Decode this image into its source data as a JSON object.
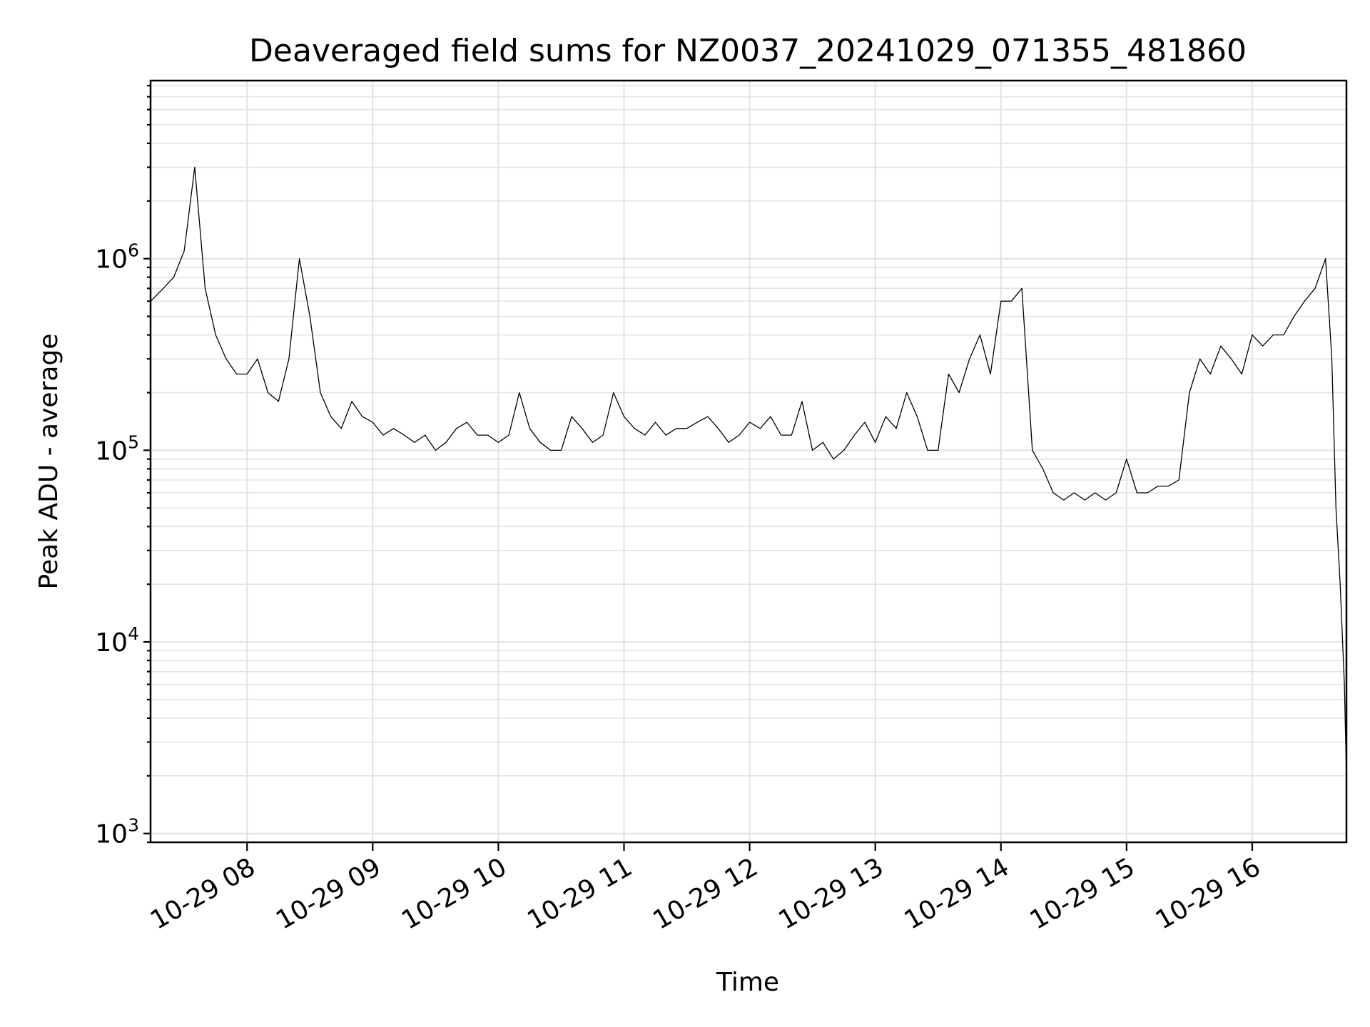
{
  "chart_data": {
    "type": "line",
    "title": "Deaveraged field sums for NZ0037_20241029_071355_481860",
    "xlabel": "Time",
    "ylabel": "Peak ADU - average",
    "yscale": "log",
    "grid": true,
    "x_range": [
      "2024-10-29 07:13:55",
      "2024-10-29 16:45:00"
    ],
    "ylim": [
      900,
      8500000
    ],
    "xticks": [
      "10-29 08",
      "10-29 09",
      "10-29 10",
      "10-29 11",
      "10-29 12",
      "10-29 13",
      "10-29 14",
      "10-29 15",
      "10-29 16"
    ],
    "yticks": [
      {
        "base": "10",
        "exp": "3"
      },
      {
        "base": "10",
        "exp": "4"
      },
      {
        "base": "10",
        "exp": "5"
      },
      {
        "base": "10",
        "exp": "6"
      }
    ],
    "series": [
      {
        "color": "#000000",
        "x": [
          "07:14",
          "07:20",
          "07:25",
          "07:30",
          "07:35",
          "07:40",
          "07:45",
          "07:50",
          "07:55",
          "08:00",
          "08:05",
          "08:10",
          "08:15",
          "08:20",
          "08:25",
          "08:30",
          "08:35",
          "08:40",
          "08:45",
          "08:50",
          "08:55",
          "09:00",
          "09:05",
          "09:10",
          "09:15",
          "09:20",
          "09:25",
          "09:30",
          "09:35",
          "09:40",
          "09:45",
          "09:50",
          "09:55",
          "10:00",
          "10:05",
          "10:10",
          "10:15",
          "10:20",
          "10:25",
          "10:30",
          "10:35",
          "10:40",
          "10:45",
          "10:50",
          "10:55",
          "11:00",
          "11:05",
          "11:10",
          "11:15",
          "11:20",
          "11:25",
          "11:30",
          "11:35",
          "11:40",
          "11:45",
          "11:50",
          "11:55",
          "12:00",
          "12:05",
          "12:10",
          "12:15",
          "12:20",
          "12:25",
          "12:30",
          "12:35",
          "12:40",
          "12:45",
          "12:50",
          "12:55",
          "13:00",
          "13:05",
          "13:10",
          "13:15",
          "13:20",
          "13:25",
          "13:30",
          "13:35",
          "13:40",
          "13:45",
          "13:50",
          "13:55",
          "14:00",
          "14:05",
          "14:10",
          "14:15",
          "14:20",
          "14:25",
          "14:30",
          "14:35",
          "14:40",
          "14:45",
          "14:50",
          "14:55",
          "15:00",
          "15:05",
          "15:10",
          "15:15",
          "15:20",
          "15:25",
          "15:30",
          "15:35",
          "15:40",
          "15:45",
          "15:50",
          "15:55",
          "16:00",
          "16:05",
          "16:10",
          "16:15",
          "16:20",
          "16:25",
          "16:30",
          "16:35",
          "16:38",
          "16:40",
          "16:42",
          "16:44",
          "16:45"
        ],
        "y": [
          600000,
          700000,
          800000,
          1100000,
          3000000,
          700000,
          400000,
          300000,
          250000,
          250000,
          300000,
          200000,
          180000,
          300000,
          1000000,
          500000,
          200000,
          150000,
          130000,
          180000,
          150000,
          140000,
          120000,
          130000,
          120000,
          110000,
          120000,
          100000,
          110000,
          130000,
          140000,
          120000,
          120000,
          110000,
          120000,
          200000,
          130000,
          110000,
          100000,
          100000,
          150000,
          130000,
          110000,
          120000,
          200000,
          150000,
          130000,
          120000,
          140000,
          120000,
          130000,
          130000,
          140000,
          150000,
          130000,
          110000,
          120000,
          140000,
          130000,
          150000,
          120000,
          120000,
          180000,
          100000,
          110000,
          90000,
          100000,
          120000,
          140000,
          110000,
          150000,
          130000,
          200000,
          150000,
          100000,
          100000,
          250000,
          200000,
          300000,
          400000,
          250000,
          600000,
          600000,
          700000,
          100000,
          80000,
          60000,
          55000,
          60000,
          55000,
          60000,
          55000,
          60000,
          90000,
          60000,
          60000,
          65000,
          65000,
          70000,
          200000,
          300000,
          250000,
          350000,
          300000,
          250000,
          400000,
          350000,
          400000,
          400000,
          500000,
          600000,
          700000,
          1000000,
          300000,
          50000,
          20000,
          6000,
          2000
        ]
      }
    ]
  }
}
